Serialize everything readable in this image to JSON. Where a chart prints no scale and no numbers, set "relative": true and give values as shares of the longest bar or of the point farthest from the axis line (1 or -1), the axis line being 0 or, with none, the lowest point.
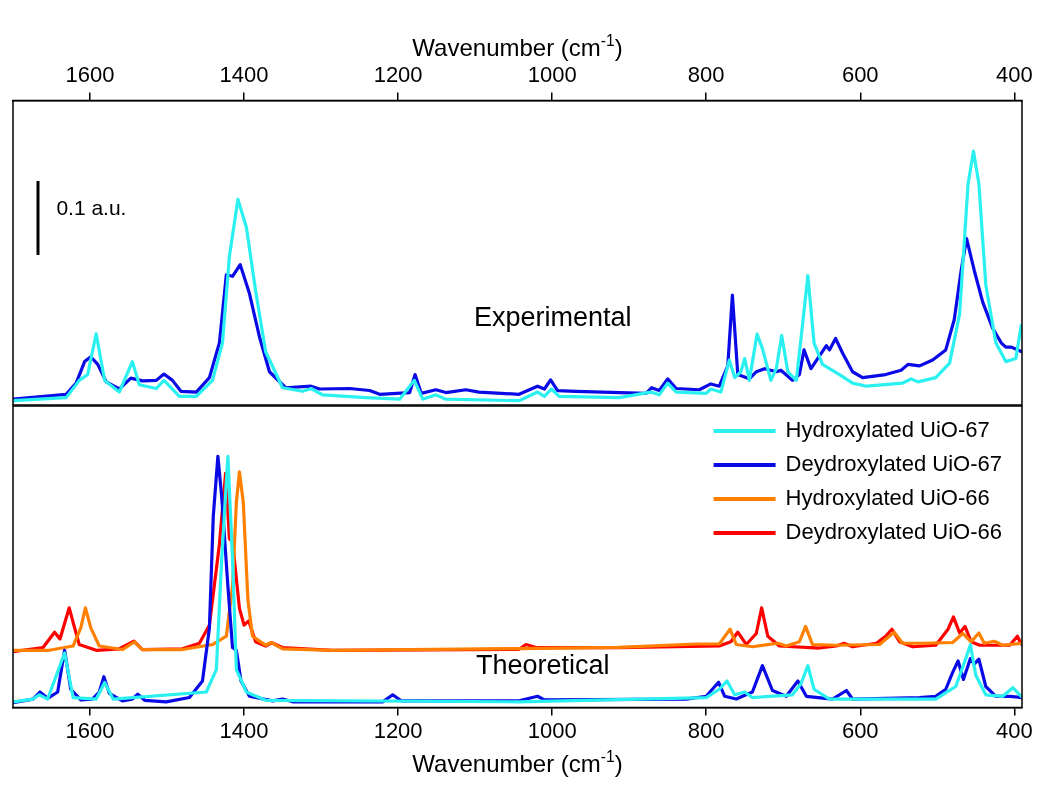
{
  "chart_data": [
    {
      "type": "line",
      "relative": true,
      "xlabel": "Wavenumber (cm$^{-1}$)",
      "xlim": [
        1700,
        390
      ],
      "xticks": [
        1600,
        1400,
        1200,
        1000,
        800,
        600,
        400
      ],
      "annotations": [
        "Experimental",
        "0.1 a.u."
      ],
      "series": [
        {
          "color": "#2af0f0",
          "x": [
            1700,
            1631,
            1614,
            1603,
            1592,
            1581,
            1562,
            1545,
            1536,
            1514,
            1504,
            1484,
            1462,
            1441,
            1428,
            1419,
            1408,
            1397,
            1385,
            1372,
            1350,
            1324,
            1313,
            1298,
            1242,
            1198,
            1179,
            1168,
            1151,
            1138,
            1043,
            1019,
            1010,
            1001,
            991,
            913,
            872,
            861,
            850,
            839,
            800,
            794,
            781,
            770,
            763,
            755,
            750,
            744,
            734,
            727,
            716,
            709,
            702,
            694,
            683,
            675,
            668,
            660,
            649,
            627,
            610,
            592,
            545,
            534,
            525,
            502,
            484,
            471,
            460,
            453,
            446,
            437,
            424,
            411,
            398,
            391
          ],
          "values": [
            0.017,
            0.029,
            0.097,
            0.12,
            0.28,
            0.097,
            0.051,
            0.171,
            0.08,
            0.065,
            0.097,
            0.034,
            0.034,
            0.097,
            0.245,
            0.587,
            0.81,
            0.7,
            0.45,
            0.21,
            0.068,
            0.054,
            0.065,
            0.04,
            0.029,
            0.023,
            0.097,
            0.023,
            0.04,
            0.023,
            0.017,
            0.051,
            0.034,
            0.063,
            0.034,
            0.029,
            0.051,
            0.04,
            0.086,
            0.051,
            0.046,
            0.063,
            0.051,
            0.177,
            0.108,
            0.131,
            0.183,
            0.097,
            0.279,
            0.222,
            0.097,
            0.143,
            0.274,
            0.131,
            0.097,
            0.314,
            0.51,
            0.245,
            0.16,
            0.12,
            0.086,
            0.074,
            0.086,
            0.103,
            0.091,
            0.108,
            0.165,
            0.359,
            0.872,
            1.0,
            0.872,
            0.473,
            0.245,
            0.171,
            0.183,
            0.314
          ]
        },
        {
          "color": "#0a0ae6",
          "x": [
            1700,
            1631,
            1618,
            1607,
            1599,
            1590,
            1579,
            1562,
            1547,
            1532,
            1514,
            1504,
            1493,
            1482,
            1462,
            1445,
            1432,
            1423,
            1415,
            1405,
            1393,
            1380,
            1367,
            1346,
            1313,
            1302,
            1263,
            1237,
            1224,
            1185,
            1178,
            1170,
            1151,
            1138,
            1112,
            1095,
            1043,
            1019,
            1010,
            1002,
            993,
            969,
            878,
            871,
            861,
            850,
            839,
            809,
            794,
            783,
            772,
            766,
            759,
            744,
            735,
            724,
            709,
            703,
            688,
            679,
            673,
            664,
            644,
            640,
            632,
            623,
            610,
            597,
            567,
            547,
            538,
            523,
            506,
            489,
            478,
            469,
            462,
            452,
            441,
            428,
            417,
            411,
            404,
            391
          ],
          "values": [
            0.023,
            0.042,
            0.086,
            0.171,
            0.19,
            0.16,
            0.091,
            0.063,
            0.106,
            0.095,
            0.097,
            0.122,
            0.097,
            0.054,
            0.051,
            0.108,
            0.245,
            0.513,
            0.507,
            0.553,
            0.439,
            0.268,
            0.131,
            0.068,
            0.074,
            0.063,
            0.065,
            0.057,
            0.042,
            0.049,
            0.12,
            0.046,
            0.06,
            0.049,
            0.06,
            0.051,
            0.042,
            0.074,
            0.063,
            0.099,
            0.057,
            0.054,
            0.046,
            0.068,
            0.057,
            0.103,
            0.065,
            0.06,
            0.083,
            0.074,
            0.154,
            0.433,
            0.12,
            0.103,
            0.131,
            0.143,
            0.131,
            0.137,
            0.097,
            0.12,
            0.217,
            0.143,
            0.234,
            0.217,
            0.262,
            0.205,
            0.131,
            0.108,
            0.12,
            0.137,
            0.16,
            0.154,
            0.177,
            0.217,
            0.336,
            0.53,
            0.656,
            0.53,
            0.405,
            0.302,
            0.245,
            0.228,
            0.228,
            0.211
          ]
        }
      ]
    },
    {
      "type": "line",
      "relative": true,
      "xlabel": "Wavenumber (cm$^{-1}$)",
      "xlim": [
        1700,
        390
      ],
      "xticks": [
        1600,
        1400,
        1200,
        1000,
        800,
        600,
        400
      ],
      "legend": "top right",
      "annotations": [
        "Theoretical"
      ],
      "series": [
        {
          "name": "Hydroxylated UiO-67",
          "color": "#2af0f0",
          "x": [
            1700,
            1674,
            1666,
            1655,
            1633,
            1622,
            1592,
            1581,
            1570,
            1449,
            1436,
            1429,
            1421,
            1415,
            1410,
            1397,
            1372,
            1043,
            800,
            783,
            773,
            763,
            750,
            740,
            688,
            677,
            668,
            660,
            640,
            502,
            476,
            463,
            457,
            450,
            437,
            415,
            402,
            391
          ],
          "values": [
            0.023,
            0.034,
            0.051,
            0.034,
            0.217,
            0.04,
            0.034,
            0.1,
            0.034,
            0.062,
            0.151,
            0.594,
            1.0,
            0.594,
            0.151,
            0.062,
            0.029,
            0.023,
            0.04,
            0.073,
            0.106,
            0.051,
            0.062,
            0.04,
            0.051,
            0.095,
            0.167,
            0.073,
            0.034,
            0.034,
            0.084,
            0.195,
            0.25,
            0.129,
            0.051,
            0.045,
            0.079,
            0.045
          ]
        },
        {
          "name": "Deydroxylated UiO-67",
          "color": "#0a0ae6",
          "x": [
            1700,
            1674,
            1665,
            1655,
            1642,
            1633,
            1625,
            1612,
            1597,
            1588,
            1582,
            1575,
            1558,
            1545,
            1538,
            1529,
            1501,
            1471,
            1454,
            1445,
            1440,
            1434,
            1429,
            1421,
            1415,
            1410,
            1404,
            1393,
            1363,
            1350,
            1337,
            1220,
            1207,
            1196,
            1043,
            1019,
            1010,
            826,
            800,
            784,
            776,
            761,
            740,
            727,
            714,
            696,
            681,
            670,
            636,
            618,
            610,
            523,
            502,
            489,
            480,
            473,
            466,
            457,
            452,
            446,
            437,
            424,
            406,
            391
          ],
          "values": [
            0.02,
            0.034,
            0.062,
            0.037,
            0.062,
            0.228,
            0.073,
            0.031,
            0.034,
            0.062,
            0.123,
            0.057,
            0.027,
            0.034,
            0.053,
            0.029,
            0.023,
            0.04,
            0.106,
            0.317,
            0.76,
            1.0,
            0.838,
            0.483,
            0.239,
            0.228,
            0.106,
            0.045,
            0.027,
            0.034,
            0.023,
            0.023,
            0.051,
            0.027,
            0.027,
            0.045,
            0.031,
            0.034,
            0.045,
            0.101,
            0.045,
            0.034,
            0.062,
            0.167,
            0.068,
            0.045,
            0.106,
            0.045,
            0.034,
            0.068,
            0.034,
            0.04,
            0.045,
            0.073,
            0.14,
            0.186,
            0.112,
            0.195,
            0.173,
            0.193,
            0.084,
            0.045,
            0.045,
            0.04
          ]
        },
        {
          "name": "Hydroxylated UiO-66",
          "color": "#ff8000",
          "x": [
            1700,
            1653,
            1622,
            1612,
            1606,
            1599,
            1588,
            1558,
            1542,
            1532,
            1480,
            1441,
            1423,
            1415,
            1410,
            1406,
            1401,
            1395,
            1389,
            1372,
            1365,
            1350,
            1285,
            1043,
            913,
            813,
            783,
            769,
            761,
            740,
            707,
            696,
            679,
            671,
            662,
            631,
            575,
            556,
            545,
            517,
            480,
            467,
            456,
            446,
            439,
            426,
            415,
            391
          ],
          "values": [
            0.228,
            0.228,
            0.245,
            0.317,
            0.397,
            0.317,
            0.245,
            0.231,
            0.262,
            0.231,
            0.231,
            0.251,
            0.284,
            0.483,
            0.816,
            0.938,
            0.816,
            0.428,
            0.284,
            0.248,
            0.259,
            0.234,
            0.228,
            0.235,
            0.24,
            0.253,
            0.253,
            0.312,
            0.251,
            0.242,
            0.256,
            0.245,
            0.262,
            0.323,
            0.251,
            0.248,
            0.251,
            0.3,
            0.256,
            0.256,
            0.259,
            0.295,
            0.262,
            0.297,
            0.256,
            0.264,
            0.248,
            0.256
          ]
        },
        {
          "name": "Deydroxylated UiO-66",
          "color": "#ff0000",
          "x": [
            1700,
            1661,
            1646,
            1639,
            1627,
            1620,
            1614,
            1592,
            1562,
            1543,
            1532,
            1480,
            1458,
            1445,
            1432,
            1424,
            1419,
            1415,
            1406,
            1400,
            1394,
            1385,
            1372,
            1364,
            1350,
            1285,
            1043,
            1034,
            1021,
            913,
            783,
            768,
            759,
            748,
            735,
            728,
            720,
            705,
            653,
            631,
            621,
            610,
            579,
            567,
            559,
            549,
            532,
            502,
            486,
            479,
            471,
            464,
            456,
            445,
            406,
            396,
            391
          ],
          "values": [
            0.223,
            0.239,
            0.3,
            0.273,
            0.397,
            0.317,
            0.251,
            0.228,
            0.234,
            0.264,
            0.231,
            0.234,
            0.256,
            0.328,
            0.65,
            0.932,
            0.672,
            0.661,
            0.395,
            0.328,
            0.345,
            0.262,
            0.245,
            0.258,
            0.239,
            0.228,
            0.232,
            0.251,
            0.239,
            0.239,
            0.245,
            0.262,
            0.3,
            0.251,
            0.295,
            0.397,
            0.284,
            0.245,
            0.237,
            0.245,
            0.256,
            0.242,
            0.256,
            0.284,
            0.312,
            0.262,
            0.242,
            0.248,
            0.312,
            0.361,
            0.297,
            0.323,
            0.262,
            0.248,
            0.248,
            0.284,
            0.253
          ]
        }
      ]
    }
  ]
}
